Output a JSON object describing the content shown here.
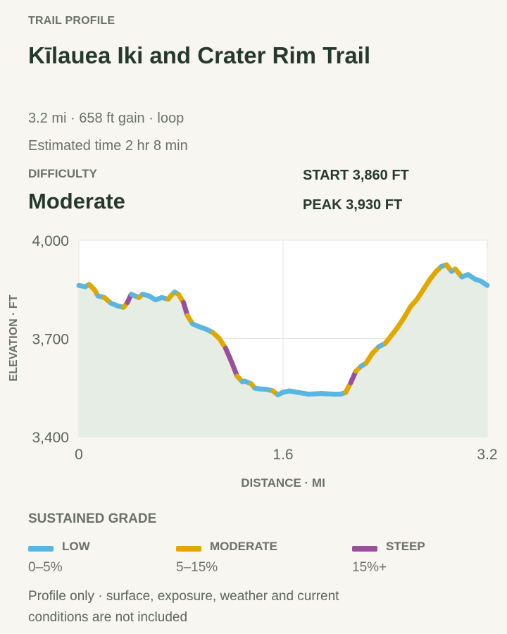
{
  "header": {
    "kicker": "TRAIL PROFILE",
    "title": "Kīlauea Iki and Crater Rim Trail",
    "summary": "3.2 mi · 658 ft gain · loop",
    "estimate": "Estimated time 2 hr 8 min"
  },
  "difficulty": {
    "label": "DIFFICULTY",
    "value": "Moderate"
  },
  "stats": {
    "start": "START 3,860 FT",
    "peak": "PEAK 3,930 FT"
  },
  "chart_data": {
    "type": "line",
    "xlabel": "DISTANCE · MI",
    "ylabel": "ELEVATION · FT",
    "xlim": [
      0,
      3.2
    ],
    "ylim": [
      3400,
      4000
    ],
    "xticks": [
      0,
      1.6,
      3.2
    ],
    "xtick_labels": [
      "0",
      "1.6",
      "3.2"
    ],
    "yticks": [
      3400,
      3700,
      4000
    ],
    "ytick_labels": [
      "3,400",
      "3,700",
      "4,000"
    ],
    "grid": true,
    "area_fill": true,
    "series": [
      {
        "points": [
          [
            0,
            3862
          ],
          [
            0.05,
            3858
          ],
          [
            0.08,
            3865
          ],
          [
            0.12,
            3850
          ],
          [
            0.15,
            3830
          ],
          [
            0.2,
            3825
          ],
          [
            0.25,
            3808
          ],
          [
            0.3,
            3800
          ],
          [
            0.35,
            3795
          ],
          [
            0.38,
            3810
          ],
          [
            0.41,
            3835
          ],
          [
            0.44,
            3830
          ],
          [
            0.47,
            3825
          ],
          [
            0.5,
            3835
          ],
          [
            0.55,
            3830
          ],
          [
            0.6,
            3818
          ],
          [
            0.65,
            3825
          ],
          [
            0.7,
            3820
          ],
          [
            0.72,
            3830
          ],
          [
            0.75,
            3842
          ],
          [
            0.78,
            3835
          ],
          [
            0.82,
            3810
          ],
          [
            0.85,
            3770
          ],
          [
            0.89,
            3745
          ],
          [
            0.93,
            3738
          ],
          [
            1.0,
            3728
          ],
          [
            1.05,
            3718
          ],
          [
            1.1,
            3700
          ],
          [
            1.15,
            3670
          ],
          [
            1.2,
            3625
          ],
          [
            1.24,
            3585
          ],
          [
            1.28,
            3568
          ],
          [
            1.3,
            3570
          ],
          [
            1.35,
            3562
          ],
          [
            1.38,
            3548
          ],
          [
            1.42,
            3546
          ],
          [
            1.47,
            3545
          ],
          [
            1.52,
            3540
          ],
          [
            1.56,
            3528
          ],
          [
            1.6,
            3536
          ],
          [
            1.65,
            3540
          ],
          [
            1.72,
            3535
          ],
          [
            1.8,
            3530
          ],
          [
            1.9,
            3532
          ],
          [
            2.0,
            3530
          ],
          [
            2.05,
            3530
          ],
          [
            2.09,
            3535
          ],
          [
            2.13,
            3565
          ],
          [
            2.17,
            3600
          ],
          [
            2.21,
            3615
          ],
          [
            2.25,
            3625
          ],
          [
            2.3,
            3655
          ],
          [
            2.35,
            3675
          ],
          [
            2.4,
            3685
          ],
          [
            2.45,
            3710
          ],
          [
            2.5,
            3735
          ],
          [
            2.55,
            3765
          ],
          [
            2.6,
            3798
          ],
          [
            2.65,
            3820
          ],
          [
            2.7,
            3850
          ],
          [
            2.75,
            3880
          ],
          [
            2.8,
            3905
          ],
          [
            2.84,
            3920
          ],
          [
            2.88,
            3925
          ],
          [
            2.92,
            3905
          ],
          [
            2.95,
            3912
          ],
          [
            3.0,
            3888
          ],
          [
            3.05,
            3895
          ],
          [
            3.1,
            3882
          ],
          [
            3.15,
            3875
          ],
          [
            3.2,
            3862
          ]
        ]
      }
    ],
    "grade_legend": [
      {
        "name": "LOW",
        "range": "0–5%",
        "color": "#5ab6e1"
      },
      {
        "name": "MODERATE",
        "range": "5–15%",
        "color": "#e0a800"
      },
      {
        "name": "STEEP",
        "range": "15%+",
        "color": "#9a4f9b"
      }
    ]
  },
  "legend": {
    "title": "SUSTAINED GRADE",
    "items": [
      {
        "name": "LOW",
        "range": "0–5%",
        "color": "#5ab6e1"
      },
      {
        "name": "MODERATE",
        "range": "5–15%",
        "color": "#e0a800"
      },
      {
        "name": "STEEP",
        "range": "15%+",
        "color": "#9a4f9b"
      }
    ]
  },
  "note": "Profile only · surface, exposure, weather and current conditions are not included"
}
